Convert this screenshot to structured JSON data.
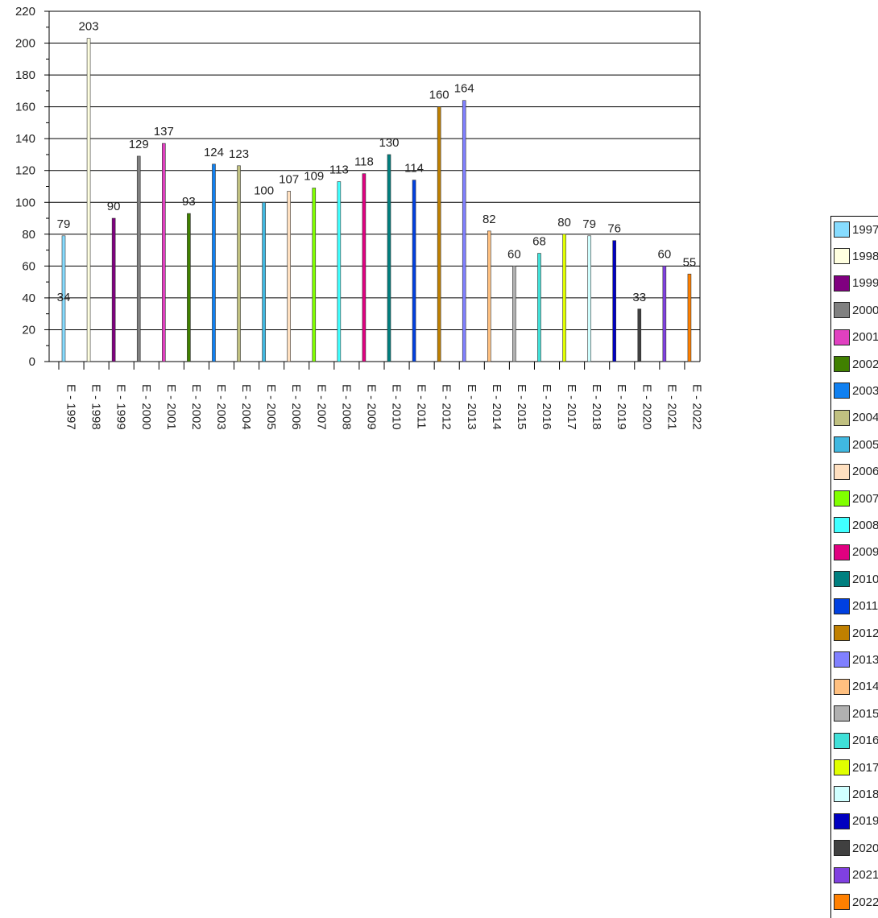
{
  "chart_data": {
    "type": "bar",
    "categories": [
      "E - 1997",
      "E - 1998",
      "E - 1999",
      "E - 2000",
      "E - 2001",
      "E - 2002",
      "E - 2003",
      "E - 2004",
      "E - 2005",
      "E - 2006",
      "E - 2007",
      "E - 2008",
      "E - 2009",
      "E - 2010",
      "E - 2011",
      "E - 2012",
      "E - 2013",
      "E - 2014",
      "E - 2015",
      "E - 2016",
      "E - 2017",
      "E - 2018",
      "E - 2019",
      "E - 2020",
      "E - 2021",
      "E - 2022"
    ],
    "series": [
      {
        "name": "1997",
        "color": "#87dcff",
        "values": [
          79,
          null,
          null,
          null,
          null,
          null,
          null,
          null,
          null,
          null,
          null,
          null,
          null,
          null,
          null,
          null,
          null,
          null,
          null,
          null,
          null,
          null,
          null,
          null,
          null,
          null
        ]
      },
      {
        "name": "1998",
        "color": "#ffffe0",
        "values": [
          null,
          203,
          null,
          null,
          null,
          null,
          null,
          null,
          null,
          null,
          null,
          null,
          null,
          null,
          null,
          null,
          null,
          null,
          null,
          null,
          null,
          null,
          null,
          null,
          null,
          null
        ]
      },
      {
        "name": "1999",
        "color": "#800080",
        "values": [
          null,
          null,
          90,
          null,
          null,
          null,
          null,
          null,
          null,
          null,
          null,
          null,
          null,
          null,
          null,
          null,
          null,
          null,
          null,
          null,
          null,
          null,
          null,
          null,
          null,
          null
        ]
      },
      {
        "name": "2000",
        "color": "#808080",
        "values": [
          null,
          null,
          null,
          129,
          null,
          null,
          null,
          null,
          null,
          null,
          null,
          null,
          null,
          null,
          null,
          null,
          null,
          null,
          null,
          null,
          null,
          null,
          null,
          null,
          null,
          null
        ]
      },
      {
        "name": "2001",
        "color": "#e040c0",
        "values": [
          null,
          null,
          null,
          null,
          137,
          null,
          null,
          null,
          null,
          null,
          null,
          null,
          null,
          null,
          null,
          null,
          null,
          null,
          null,
          null,
          null,
          null,
          null,
          null,
          null,
          null
        ]
      },
      {
        "name": "2002",
        "color": "#408000",
        "values": [
          null,
          null,
          null,
          null,
          null,
          93,
          null,
          null,
          null,
          null,
          null,
          null,
          null,
          null,
          null,
          null,
          null,
          null,
          null,
          null,
          null,
          null,
          null,
          null,
          null,
          null
        ]
      },
      {
        "name": "2003",
        "color": "#1080f0",
        "values": [
          null,
          null,
          null,
          null,
          null,
          null,
          124,
          null,
          null,
          null,
          null,
          null,
          null,
          null,
          null,
          null,
          null,
          null,
          null,
          null,
          null,
          null,
          null,
          null,
          null,
          null
        ]
      },
      {
        "name": "2004",
        "color": "#c0c080",
        "values": [
          null,
          null,
          null,
          null,
          null,
          null,
          null,
          123,
          null,
          null,
          null,
          null,
          null,
          null,
          null,
          null,
          null,
          null,
          null,
          null,
          null,
          null,
          null,
          null,
          null,
          null
        ]
      },
      {
        "name": "2005",
        "color": "#40b8e0",
        "values": [
          null,
          null,
          null,
          null,
          null,
          null,
          null,
          null,
          100,
          null,
          null,
          null,
          null,
          null,
          null,
          null,
          null,
          null,
          null,
          null,
          null,
          null,
          null,
          null,
          null,
          null
        ]
      },
      {
        "name": "2006",
        "color": "#ffe0c0",
        "values": [
          null,
          null,
          null,
          null,
          null,
          null,
          null,
          null,
          null,
          107,
          null,
          null,
          null,
          null,
          null,
          null,
          null,
          null,
          null,
          null,
          null,
          null,
          null,
          null,
          null,
          null
        ]
      },
      {
        "name": "2007",
        "color": "#80ff00",
        "values": [
          null,
          null,
          null,
          null,
          null,
          null,
          null,
          null,
          null,
          null,
          109,
          null,
          null,
          null,
          null,
          null,
          null,
          null,
          null,
          null,
          null,
          null,
          null,
          null,
          null,
          null
        ]
      },
      {
        "name": "2008",
        "color": "#40ffff",
        "values": [
          null,
          null,
          null,
          null,
          null,
          null,
          null,
          null,
          null,
          null,
          null,
          113,
          null,
          null,
          null,
          null,
          null,
          null,
          null,
          null,
          null,
          null,
          null,
          null,
          null,
          null
        ]
      },
      {
        "name": "2009",
        "color": "#e00080",
        "values": [
          null,
          null,
          null,
          null,
          null,
          null,
          null,
          null,
          null,
          null,
          null,
          null,
          118,
          null,
          null,
          null,
          null,
          null,
          null,
          null,
          null,
          null,
          null,
          null,
          null,
          null
        ]
      },
      {
        "name": "2010",
        "color": "#008080",
        "values": [
          null,
          null,
          null,
          null,
          null,
          null,
          null,
          null,
          null,
          null,
          null,
          null,
          null,
          130,
          null,
          null,
          null,
          null,
          null,
          null,
          null,
          null,
          null,
          null,
          null,
          null
        ]
      },
      {
        "name": "2011",
        "color": "#0040e0",
        "values": [
          null,
          null,
          null,
          null,
          null,
          null,
          null,
          null,
          null,
          null,
          null,
          null,
          null,
          null,
          114,
          null,
          null,
          null,
          null,
          null,
          null,
          null,
          null,
          null,
          null,
          null
        ]
      },
      {
        "name": "2012",
        "color": "#c08000",
        "values": [
          null,
          null,
          null,
          null,
          null,
          null,
          null,
          null,
          null,
          null,
          null,
          null,
          null,
          null,
          null,
          160,
          null,
          null,
          null,
          null,
          null,
          null,
          null,
          null,
          null,
          null
        ]
      },
      {
        "name": "2013",
        "color": "#8080ff",
        "values": [
          null,
          null,
          null,
          null,
          null,
          null,
          null,
          null,
          null,
          null,
          null,
          null,
          null,
          null,
          null,
          null,
          164,
          null,
          null,
          null,
          null,
          null,
          null,
          null,
          null,
          null
        ]
      },
      {
        "name": "2014",
        "color": "#ffc080",
        "values": [
          null,
          null,
          null,
          null,
          null,
          null,
          null,
          null,
          null,
          null,
          null,
          null,
          null,
          null,
          null,
          null,
          null,
          82,
          null,
          null,
          null,
          null,
          null,
          null,
          null,
          null
        ]
      },
      {
        "name": "2015",
        "color": "#b0b0b0",
        "values": [
          null,
          null,
          null,
          null,
          null,
          null,
          null,
          null,
          null,
          null,
          null,
          null,
          null,
          null,
          null,
          null,
          null,
          null,
          60,
          null,
          null,
          null,
          null,
          null,
          null,
          null
        ]
      },
      {
        "name": "2016",
        "color": "#40e0d8",
        "values": [
          null,
          null,
          null,
          null,
          null,
          null,
          null,
          null,
          null,
          null,
          null,
          null,
          null,
          null,
          null,
          null,
          null,
          null,
          null,
          68,
          null,
          null,
          null,
          null,
          null,
          null
        ]
      },
      {
        "name": "2017",
        "color": "#e0ff00",
        "values": [
          null,
          null,
          null,
          null,
          null,
          null,
          null,
          null,
          null,
          null,
          null,
          null,
          null,
          null,
          null,
          null,
          null,
          null,
          null,
          null,
          80,
          null,
          null,
          null,
          null,
          null
        ]
      },
      {
        "name": "2018",
        "color": "#d0ffff",
        "values": [
          null,
          null,
          null,
          null,
          null,
          null,
          null,
          null,
          null,
          null,
          null,
          null,
          null,
          null,
          null,
          null,
          null,
          null,
          null,
          null,
          null,
          79,
          null,
          null,
          null,
          null
        ]
      },
      {
        "name": "2019",
        "color": "#0000c0",
        "values": [
          null,
          null,
          null,
          null,
          null,
          null,
          null,
          null,
          null,
          null,
          null,
          null,
          null,
          null,
          null,
          null,
          null,
          null,
          null,
          null,
          null,
          null,
          76,
          null,
          null,
          null
        ]
      },
      {
        "name": "2020",
        "color": "#404040",
        "values": [
          null,
          null,
          null,
          null,
          null,
          null,
          null,
          null,
          null,
          null,
          null,
          null,
          null,
          null,
          null,
          null,
          null,
          null,
          null,
          null,
          null,
          null,
          null,
          33,
          null,
          null
        ]
      },
      {
        "name": "2021",
        "color": "#8040e0",
        "values": [
          null,
          null,
          null,
          null,
          null,
          null,
          null,
          null,
          null,
          null,
          null,
          null,
          null,
          null,
          null,
          null,
          null,
          null,
          null,
          null,
          null,
          null,
          null,
          null,
          60,
          null
        ]
      },
      {
        "name": "2022",
        "color": "#ff8000",
        "values": [
          null,
          null,
          null,
          null,
          null,
          null,
          null,
          null,
          null,
          null,
          null,
          null,
          null,
          null,
          null,
          null,
          null,
          null,
          null,
          null,
          null,
          null,
          null,
          null,
          null,
          55
        ]
      }
    ],
    "annotations": [
      {
        "category": "E - 1997",
        "text": "34"
      }
    ],
    "title": "",
    "xlabel": "",
    "ylabel": "",
    "ylim": [
      0,
      220
    ],
    "yticks": [
      0,
      20,
      40,
      60,
      80,
      100,
      120,
      140,
      160,
      180,
      200,
      220
    ],
    "grid": true,
    "legend_position": "right"
  }
}
